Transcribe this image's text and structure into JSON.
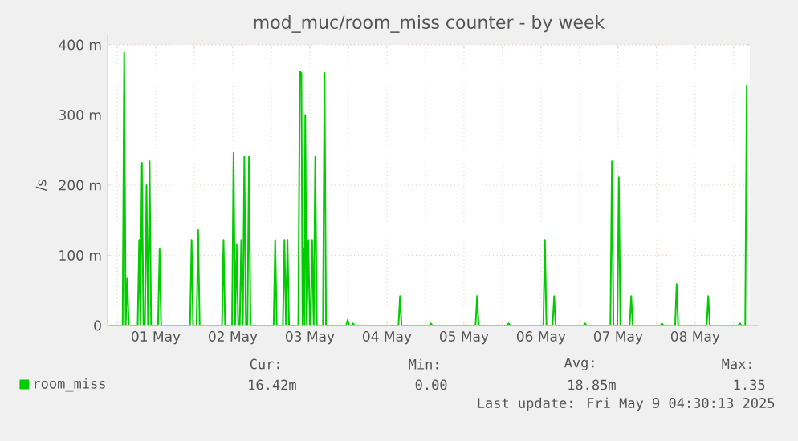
{
  "chart_data": {
    "type": "line",
    "title": "mod_muc/room_miss counter - by week",
    "ylabel": "/s",
    "x": [
      "2025-04-30T21:36",
      "2025-05-01T01:41",
      "2025-05-01T02:10",
      "2025-05-01T02:38",
      "2025-05-01T03:07",
      "2025-05-01T03:36",
      "2025-05-01T06:22",
      "2025-05-01T06:50",
      "2025-05-01T07:12",
      "2025-05-01T07:41",
      "2025-05-01T08:10",
      "2025-05-01T08:38",
      "2025-05-01T09:07",
      "2025-05-01T09:36",
      "2025-05-01T10:05",
      "2025-05-01T10:34",
      "2025-05-01T12:43",
      "2025-05-01T13:12",
      "2025-05-01T13:41",
      "2025-05-01T22:41",
      "2025-05-01T23:10",
      "2025-05-01T23:38",
      "2025-05-02T00:43",
      "2025-05-02T01:12",
      "2025-05-02T01:41",
      "2025-05-02T08:38",
      "2025-05-02T09:07",
      "2025-05-02T09:36",
      "2025-05-02T11:46",
      "2025-05-02T12:14",
      "2025-05-02T12:43",
      "2025-05-02T13:12",
      "2025-05-02T13:41",
      "2025-05-02T14:10",
      "2025-05-02T14:38",
      "2025-05-02T15:07",
      "2025-05-02T15:36",
      "2025-05-02T16:05",
      "2025-05-02T16:34",
      "2025-05-02T17:02",
      "2025-05-02T17:31",
      "2025-05-03T00:43",
      "2025-05-03T01:12",
      "2025-05-03T01:41",
      "2025-05-03T03:36",
      "2025-05-03T04:05",
      "2025-05-03T04:34",
      "2025-05-03T05:02",
      "2025-05-03T05:31",
      "2025-05-03T08:24",
      "2025-05-03T08:53",
      "2025-05-03T09:22",
      "2025-05-03T09:43",
      "2025-05-03T10:05",
      "2025-05-03T10:19",
      "2025-05-03T10:34",
      "2025-05-03T11:02",
      "2025-05-03T11:31",
      "2025-05-03T12:00",
      "2025-05-03T12:14",
      "2025-05-03T12:43",
      "2025-05-03T13:12",
      "2025-05-03T13:41",
      "2025-05-03T14:10",
      "2025-05-03T16:05",
      "2025-05-03T16:34",
      "2025-05-03T17:02",
      "2025-05-03T23:17",
      "2025-05-03T23:46",
      "2025-05-04T00:14",
      "2025-05-04T00:58",
      "2025-05-04T01:26",
      "2025-05-04T01:55",
      "2025-05-04T15:36",
      "2025-05-04T16:05",
      "2025-05-04T16:34",
      "2025-05-05T01:12",
      "2025-05-05T01:41",
      "2025-05-05T02:10",
      "2025-05-05T15:36",
      "2025-05-05T16:05",
      "2025-05-05T16:34",
      "2025-05-06T01:26",
      "2025-05-06T01:55",
      "2025-05-06T02:24",
      "2025-05-06T12:43",
      "2025-05-06T13:12",
      "2025-05-06T13:41",
      "2025-05-06T15:36",
      "2025-05-06T16:05",
      "2025-05-06T16:34",
      "2025-05-07T01:12",
      "2025-05-07T01:41",
      "2025-05-07T02:10",
      "2025-05-07T09:36",
      "2025-05-07T10:05",
      "2025-05-07T10:34",
      "2025-05-07T11:46",
      "2025-05-07T12:14",
      "2025-05-07T12:43",
      "2025-05-07T15:36",
      "2025-05-07T16:05",
      "2025-05-07T16:34",
      "2025-05-08T01:12",
      "2025-05-08T01:41",
      "2025-05-08T02:10",
      "2025-05-08T05:46",
      "2025-05-08T06:14",
      "2025-05-08T06:43",
      "2025-05-08T15:36",
      "2025-05-08T16:05",
      "2025-05-08T16:34",
      "2025-05-09T01:26",
      "2025-05-09T01:55",
      "2025-05-09T02:24",
      "2025-05-09T03:36",
      "2025-05-09T04:05"
    ],
    "series": [
      {
        "name": "room_miss",
        "color": "#00cc00",
        "values": [
          0,
          0,
          389,
          0,
          67,
          0,
          0,
          122,
          0,
          232,
          0,
          0,
          200,
          0,
          234,
          0,
          0,
          110,
          0,
          0,
          122,
          0,
          0,
          136,
          0,
          0,
          122,
          0,
          0,
          247,
          0,
          116,
          0,
          0,
          122,
          0,
          241,
          0,
          0,
          241,
          0,
          0,
          122,
          0,
          0,
          122,
          0,
          122,
          0,
          0,
          362,
          360,
          0,
          110,
          0,
          300,
          0,
          122,
          0,
          0,
          122,
          0,
          241,
          0,
          0,
          360,
          0,
          0,
          8,
          0,
          0,
          3,
          0,
          0,
          42,
          0,
          0,
          3,
          0,
          0,
          42,
          0,
          0,
          3,
          0,
          0,
          122,
          0,
          0,
          42,
          0,
          0,
          3,
          0,
          0,
          234,
          0,
          0,
          211,
          0,
          0,
          42,
          0,
          0,
          3,
          0,
          0,
          59,
          0,
          0,
          42,
          0,
          0,
          3,
          0,
          0,
          343
        ]
      }
    ],
    "xlim": [
      "2025-04-30T21:00",
      "2025-05-09T05:02"
    ],
    "xticks": [
      {
        "value": "2025-05-01",
        "label": null
      },
      {
        "value": "2025-05-01T12:00",
        "label": "01 May"
      },
      {
        "value": "2025-05-02",
        "label": null
      },
      {
        "value": "2025-05-02T12:00",
        "label": "02 May"
      },
      {
        "value": "2025-05-03",
        "label": null
      },
      {
        "value": "2025-05-03T12:00",
        "label": "03 May"
      },
      {
        "value": "2025-05-04",
        "label": null
      },
      {
        "value": "2025-05-04T12:00",
        "label": "04 May"
      },
      {
        "value": "2025-05-05",
        "label": null
      },
      {
        "value": "2025-05-05T12:00",
        "label": "05 May"
      },
      {
        "value": "2025-05-06",
        "label": null
      },
      {
        "value": "2025-05-06T12:00",
        "label": "06 May"
      },
      {
        "value": "2025-05-07",
        "label": null
      },
      {
        "value": "2025-05-07T12:00",
        "label": "07 May"
      },
      {
        "value": "2025-05-08",
        "label": null
      },
      {
        "value": "2025-05-08T12:00",
        "label": "08 May"
      },
      {
        "value": "2025-05-09",
        "label": null
      }
    ],
    "ylim": [
      0,
      400
    ],
    "yticks": [
      0,
      {
        "value": 100,
        "label": "100 m"
      },
      {
        "value": 200,
        "label": "200 m"
      },
      {
        "value": 300,
        "label": "300 m"
      },
      {
        "value": 400,
        "label": "400 m"
      }
    ],
    "grid": true,
    "legend": "bottom left",
    "marker": "none",
    "line_style": "solid",
    "annotations": [
      "Cur:",
      "Min:",
      "Avg:",
      "Max:",
      "16.42m",
      "0.00",
      "18.85m",
      "1.35",
      "Last update: Fri May  9 04:30:13 2025"
    ]
  }
}
